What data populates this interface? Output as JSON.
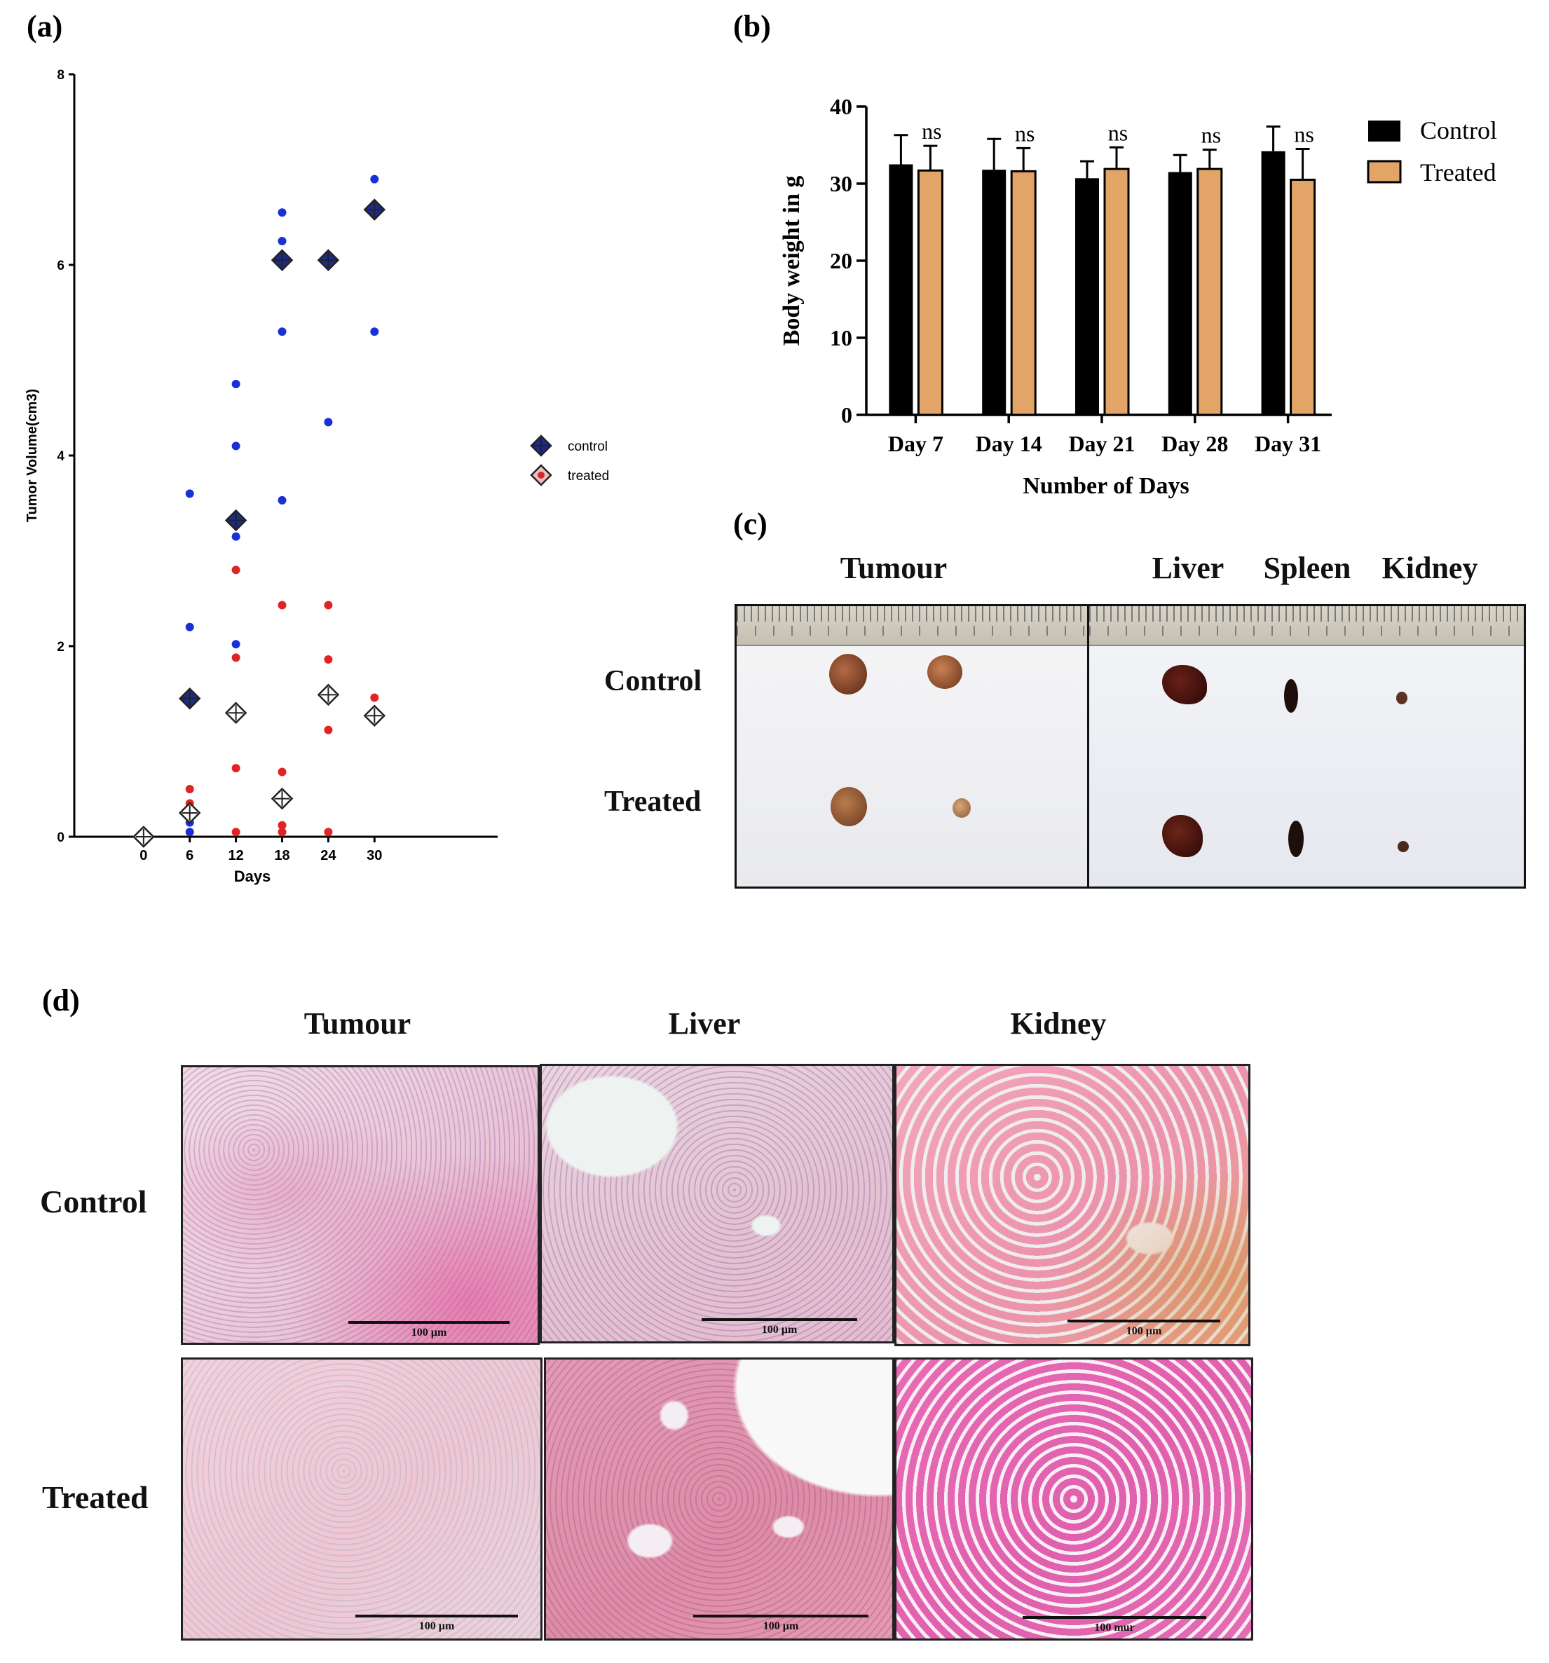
{
  "panels": {
    "a": "(a)",
    "b": "(b)",
    "c": "(c)",
    "d": "(d)"
  },
  "chart_data": [
    {
      "type": "scatter",
      "panel": "(a)",
      "title": "",
      "xlabel": "Days",
      "ylabel": "Tumor Volume(cm3)",
      "x_ticks": [
        "0",
        "6",
        "12",
        "18",
        "24",
        "30"
      ],
      "y_ticks": [
        "0",
        "2",
        "4",
        "6",
        "8"
      ],
      "xlim": [
        -9,
        46
      ],
      "ylim": [
        0,
        8
      ],
      "legend": [
        "control",
        "treated"
      ],
      "colors": {
        "control": "#1a2fd6",
        "treated": "#e02424",
        "mean_fill_control": "#1c2a8a",
        "mean_fill_treated": "#ffffff"
      },
      "series": [
        {
          "name": "control",
          "points": [
            [
              6,
              3.6
            ],
            [
              6,
              2.2
            ],
            [
              6,
              0.15
            ],
            [
              6,
              0.05
            ],
            [
              12,
              4.75
            ],
            [
              12,
              4.1
            ],
            [
              12,
              3.15
            ],
            [
              12,
              2.02
            ],
            [
              18,
              6.55
            ],
            [
              18,
              6.25
            ],
            [
              18,
              5.3
            ],
            [
              18,
              3.53
            ],
            [
              24,
              6.05
            ],
            [
              24,
              4.35
            ],
            [
              30,
              6.9
            ],
            [
              30,
              5.3
            ]
          ],
          "means": [
            [
              0,
              0
            ],
            [
              6,
              1.45
            ],
            [
              12,
              3.32
            ],
            [
              18,
              6.05
            ],
            [
              24,
              6.05
            ],
            [
              30,
              6.58
            ]
          ]
        },
        {
          "name": "treated",
          "points": [
            [
              6,
              0.5
            ],
            [
              6,
              0.35
            ],
            [
              6,
              0.2
            ],
            [
              12,
              2.8
            ],
            [
              12,
              1.88
            ],
            [
              12,
              0.72
            ],
            [
              12,
              0.05
            ],
            [
              18,
              2.43
            ],
            [
              18,
              0.68
            ],
            [
              18,
              0.12
            ],
            [
              18,
              0.05
            ],
            [
              24,
              2.43
            ],
            [
              24,
              1.86
            ],
            [
              24,
              1.12
            ],
            [
              24,
              0.05
            ],
            [
              30,
              1.46
            ],
            [
              30,
              1.27
            ]
          ],
          "means": [
            [
              0,
              0
            ],
            [
              6,
              0.25
            ],
            [
              12,
              1.3
            ],
            [
              18,
              0.4
            ],
            [
              24,
              1.49
            ],
            [
              30,
              1.27
            ]
          ]
        }
      ]
    },
    {
      "type": "bar",
      "panel": "(b)",
      "title": "",
      "xlabel": "Number of Days",
      "ylabel": "Body weight in g",
      "categories": [
        "Day 7",
        "Day 14",
        "Day 21",
        "Day 28",
        "Day 31"
      ],
      "y_ticks": [
        "0",
        "10",
        "20",
        "30",
        "40"
      ],
      "ylim": [
        0,
        40
      ],
      "legend": [
        "Control",
        "Treated"
      ],
      "annotation": "ns",
      "series": [
        {
          "name": "Control",
          "color": "#000000",
          "values": [
            32.5,
            31.8,
            30.7,
            31.5,
            34.2
          ],
          "errors": [
            3.8,
            4.0,
            2.2,
            2.2,
            3.2
          ]
        },
        {
          "name": "Treated",
          "color": "#e3a567",
          "values": [
            31.7,
            31.6,
            31.9,
            31.9,
            30.5
          ],
          "errors": [
            3.2,
            3.0,
            2.8,
            2.5,
            4.0
          ]
        }
      ]
    }
  ],
  "panel_c": {
    "col_tumour": "Tumour",
    "col_liver": "Liver",
    "col_spleen": "Spleen",
    "col_kidney": "Kidney",
    "row_control": "Control",
    "row_treated": "Treated"
  },
  "panel_d": {
    "col_tumour": "Tumour",
    "col_liver": "Liver",
    "col_kidney": "Kidney",
    "row_control": "Control",
    "row_treated": "Treated",
    "scale_labels": [
      "100 µm",
      "100 µm",
      "100 µm",
      "100 µm",
      "100 µm",
      "100 mur"
    ]
  }
}
